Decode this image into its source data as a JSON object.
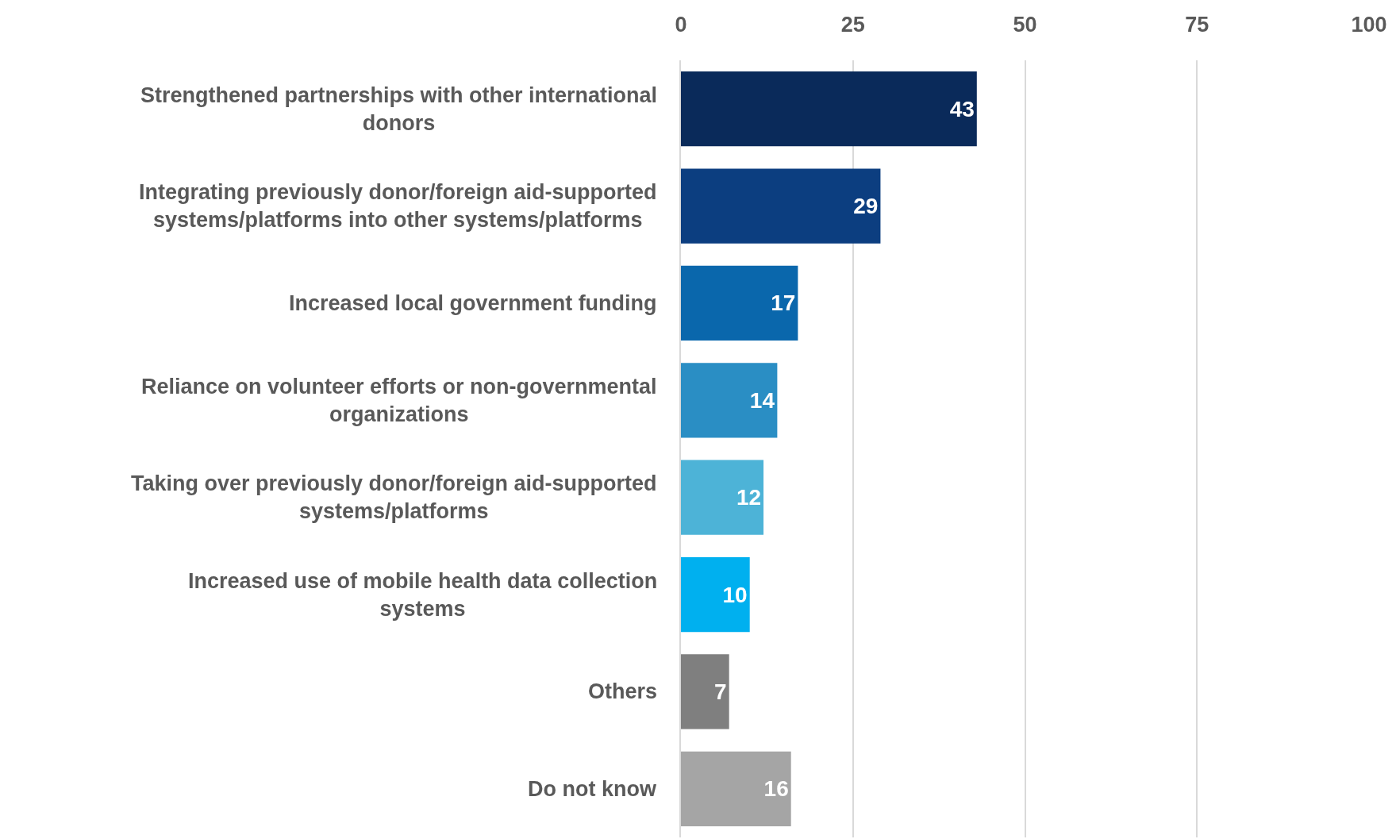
{
  "chart_data": {
    "type": "bar",
    "orientation": "horizontal",
    "categories": [
      "Strengthened partnerships with other international donors",
      "Integrating previously donor/foreign aid-supported systems/platforms into other systems/platforms",
      "Increased local government funding",
      "Reliance on volunteer efforts or non-governmental organizations",
      "Taking over previously donor/foreign aid-supported systems/platforms",
      "Increased use of mobile health data collection systems",
      "Others",
      "Do not know"
    ],
    "values": [
      43,
      29,
      17,
      14,
      12,
      10,
      7,
      16
    ],
    "colors": [
      "#0a2a5a",
      "#0c3e80",
      "#0a67ac",
      "#2a8ec4",
      "#4db3d7",
      "#00b0ef",
      "#7f7f7f",
      "#a5a5a5"
    ],
    "xlim": [
      0,
      100
    ],
    "xticks": [
      0,
      25,
      50,
      75,
      100
    ],
    "grid": "x",
    "data_labels": true
  }
}
